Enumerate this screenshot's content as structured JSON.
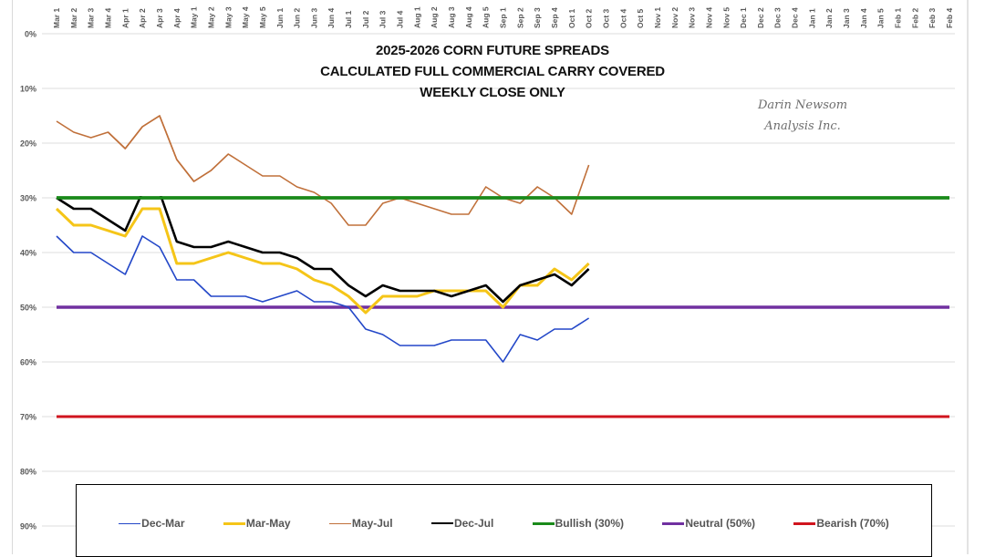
{
  "chart_data": {
    "type": "line",
    "title": "2025-2026 CORN FUTURE SPREADS",
    "subtitle_lines": [
      "CALCULATED FULL COMMERCIAL CARRY COVERED",
      "WEEKLY CLOSE ONLY"
    ],
    "title_lines": [
      "2025-2026 CORN FUTURE SPREADS",
      "CALCULATED FULL COMMERCIAL CARRY COVERED",
      "WEEKLY CLOSE ONLY"
    ],
    "watermark": [
      "Darin Newsom",
      "Analysis Inc."
    ],
    "xlabel": "",
    "ylabel": "",
    "y_axis_inverted": true,
    "ylim": [
      0,
      90
    ],
    "y_ticks": [
      "0%",
      "10%",
      "20%",
      "30%",
      "40%",
      "50%",
      "60%",
      "70%",
      "80%",
      "90%"
    ],
    "grid": true,
    "legend_position": "bottom",
    "categories": [
      "Mar 1",
      "Mar 2",
      "Mar 3",
      "Mar 4",
      "Apr 1",
      "Apr 2",
      "Apr 3",
      "Apr 4",
      "May 1",
      "May 2",
      "May 3",
      "May 4",
      "May 5",
      "Jun 1",
      "Jun 2",
      "Jun 3",
      "Jun 4",
      "Jul 1",
      "Jul 2",
      "Jul 3",
      "Jul 4",
      "Aug 1",
      "Aug 2",
      "Aug 3",
      "Aug 4",
      "Aug 5",
      "Sep 1",
      "Sep 2",
      "Sep 3",
      "Sep 4",
      "Oct 1",
      "Oct 2",
      "Oct 3",
      "Oct 4",
      "Oct 5",
      "Nov 1",
      "Nov 2",
      "Nov 3",
      "Nov 4",
      "Nov 5",
      "Dec 1",
      "Dec 2",
      "Dec 3",
      "Dec 4",
      "Jan 1",
      "Jan 2",
      "Jan 3",
      "Jan 4",
      "Jan 5",
      "Feb 1",
      "Feb 2",
      "Feb 3",
      "Feb 4"
    ],
    "series": [
      {
        "name": "Dec-Mar",
        "color": "#2347c8",
        "width": 1.6,
        "values": [
          37,
          40,
          40,
          42,
          44,
          37,
          39,
          45,
          45,
          48,
          48,
          48,
          49,
          48,
          47,
          49,
          49,
          50,
          54,
          55,
          57,
          57,
          57,
          56,
          56,
          56,
          60,
          55,
          56,
          54,
          54,
          52
        ]
      },
      {
        "name": "Mar-May",
        "color": "#f5c518",
        "width": 3,
        "values": [
          32,
          35,
          35,
          36,
          37,
          32,
          32,
          42,
          42,
          41,
          40,
          41,
          42,
          42,
          43,
          45,
          46,
          48,
          51,
          48,
          48,
          48,
          47,
          47,
          47,
          47,
          50,
          46,
          46,
          43,
          45,
          42
        ]
      },
      {
        "name": "May-Jul",
        "color": "#c0703a",
        "width": 1.6,
        "values": [
          16,
          18,
          19,
          18,
          21,
          17,
          15,
          23,
          27,
          25,
          22,
          24,
          26,
          26,
          28,
          29,
          31,
          35,
          35,
          31,
          30,
          31,
          32,
          33,
          33,
          28,
          30,
          31,
          28,
          30,
          33,
          24
        ]
      },
      {
        "name": "Dec-Jul",
        "color": "#000000",
        "width": 2.6,
        "values": [
          30,
          32,
          32,
          34,
          36,
          29,
          29,
          38,
          39,
          39,
          38,
          39,
          40,
          40,
          41,
          43,
          43,
          46,
          48,
          46,
          47,
          47,
          47,
          48,
          47,
          46,
          49,
          46,
          45,
          44,
          46,
          43
        ]
      },
      {
        "name": "Bullish (30%)",
        "color": "#1a8a1a",
        "width": 3.5,
        "constant": 30
      },
      {
        "name": "Neutral (50%)",
        "color": "#7030a0",
        "width": 3.5,
        "constant": 50
      },
      {
        "name": "Bearish (70%)",
        "color": "#d0141e",
        "width": 3,
        "constant": 70
      }
    ]
  }
}
